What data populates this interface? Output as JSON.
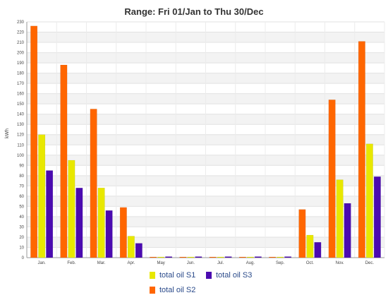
{
  "colors": {
    "total oil S2": "#ff6600",
    "total oil S1": "#e8e800",
    "total oil S3": "#4b0bb0"
  },
  "chart_data": {
    "type": "bar",
    "title": "Range: Fri 01/Jan to Thu 30/Dec",
    "ylabel": "kWh",
    "xlabel": "",
    "ylim": [
      0,
      230
    ],
    "yticks": [
      0,
      10,
      20,
      30,
      40,
      50,
      60,
      70,
      80,
      90,
      100,
      110,
      120,
      130,
      140,
      150,
      160,
      170,
      180,
      190,
      200,
      210,
      220,
      230
    ],
    "grid": true,
    "legend_position": "bottom",
    "categories": [
      "Jan.",
      "Feb.",
      "Mar.",
      "Apr.",
      "May",
      "Jun.",
      "Jul.",
      "Aug.",
      "Sep.",
      "Oct.",
      "Nov.",
      "Dec."
    ],
    "series": [
      {
        "name": "total oil S2",
        "values": [
          226,
          188,
          145,
          49,
          0.5,
          0.5,
          0.5,
          0.5,
          0.5,
          47,
          154,
          211
        ]
      },
      {
        "name": "total oil S1",
        "values": [
          120,
          95,
          68,
          21,
          0.5,
          0.5,
          0.5,
          0.5,
          0.5,
          22,
          76,
          111
        ]
      },
      {
        "name": "total oil S3",
        "values": [
          85,
          68,
          46,
          14,
          1,
          1,
          1,
          1,
          1,
          15,
          53,
          79
        ]
      }
    ]
  }
}
